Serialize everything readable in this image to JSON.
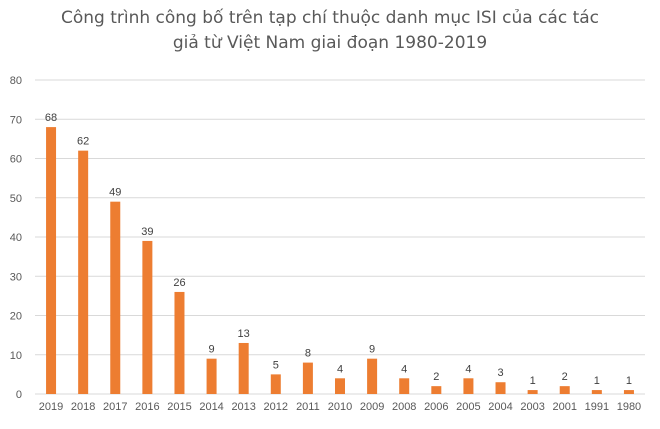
{
  "chart_data": {
    "type": "bar",
    "title_line1": "Công trình công bố trên tạp chí thuộc danh mục ISI của các tác",
    "title_line2": "giả từ Việt Nam giai đoạn 1980-2019",
    "categories": [
      "2019",
      "2018",
      "2017",
      "2016",
      "2015",
      "2014",
      "2013",
      "2012",
      "2011",
      "2010",
      "2009",
      "2008",
      "2006",
      "2005",
      "2004",
      "2003",
      "2001",
      "1991",
      "1980"
    ],
    "values": [
      68,
      62,
      49,
      39,
      26,
      9,
      13,
      5,
      8,
      4,
      9,
      4,
      2,
      4,
      3,
      1,
      2,
      1,
      1
    ],
    "ylim": [
      0,
      80
    ],
    "yticks": [
      0,
      10,
      20,
      30,
      40,
      50,
      60,
      70,
      80
    ],
    "grid": true,
    "legend": "none",
    "bar_color": "#ED7D31",
    "grid_color": "#D9D9D9"
  }
}
